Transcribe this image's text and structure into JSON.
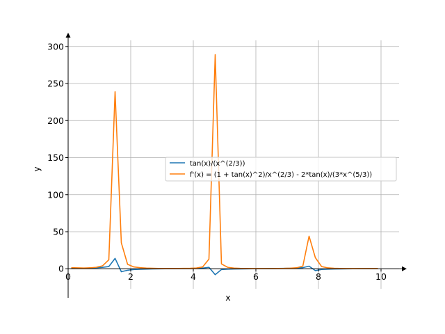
{
  "chart_data": {
    "type": "line",
    "xlabel": "x",
    "ylabel": "y",
    "xlim": [
      0,
      10.6
    ],
    "ylim": [
      -27,
      312
    ],
    "xticks": [
      0,
      2,
      4,
      6,
      8,
      10
    ],
    "yticks": [
      0,
      50,
      100,
      150,
      200,
      250,
      300
    ],
    "grid": true,
    "legend_position": "center-right",
    "series": [
      {
        "name": "tan(x)/(x^(2/3))",
        "color": "#1f77b4",
        "x": [
          0.1,
          0.3,
          0.5,
          0.7,
          0.9,
          1.1,
          1.3,
          1.5,
          1.7,
          1.9,
          2.1,
          2.3,
          2.5,
          2.7,
          2.9,
          3.1,
          3.3,
          3.5,
          3.7,
          3.9,
          4.1,
          4.3,
          4.5,
          4.7,
          4.9,
          5.1,
          5.3,
          5.5,
          5.7,
          5.9,
          6.1,
          6.3,
          6.5,
          6.7,
          6.9,
          7.1,
          7.3,
          7.5,
          7.7,
          7.9,
          8.1,
          8.3,
          8.5,
          8.7,
          8.9,
          9.1,
          9.3,
          9.5,
          9.7,
          9.9
        ],
        "y": [
          0.3,
          0.6,
          0.8,
          1.0,
          1.3,
          1.9,
          3.0,
          14.0,
          -4.0,
          -2.0,
          -1.0,
          -0.6,
          -0.4,
          -0.2,
          -0.1,
          0.0,
          0.1,
          0.2,
          0.3,
          0.4,
          0.6,
          0.9,
          2.0,
          -8.0,
          -1.0,
          -0.5,
          -0.3,
          -0.2,
          -0.1,
          0.0,
          0.1,
          0.2,
          0.3,
          0.4,
          0.5,
          0.7,
          1.0,
          1.5,
          3.5,
          -2.5,
          -0.9,
          -0.5,
          -0.3,
          -0.2,
          -0.1,
          0.0,
          0.1,
          0.2,
          0.2,
          0.3
        ]
      },
      {
        "name": "f'(x) = (1 + tan(x)^2)/x^(2/3) - 2*tan(x)/(3*x^(5/3))",
        "color": "#ff7f0e",
        "x": [
          0.1,
          0.3,
          0.5,
          0.7,
          0.9,
          1.1,
          1.3,
          1.5,
          1.7,
          1.9,
          2.1,
          2.3,
          2.5,
          2.7,
          2.9,
          3.1,
          3.3,
          3.5,
          3.7,
          3.9,
          4.1,
          4.3,
          4.5,
          4.7,
          4.9,
          5.1,
          5.3,
          5.5,
          5.7,
          5.9,
          6.1,
          6.3,
          6.5,
          6.7,
          6.9,
          7.1,
          7.3,
          7.5,
          7.7,
          7.9,
          8.1,
          8.3,
          8.5,
          8.7,
          8.9,
          9.1,
          9.3,
          9.5,
          9.7,
          9.9
        ],
        "y": [
          1.5,
          1.2,
          1.0,
          1.3,
          2.0,
          4.0,
          12.0,
          239.0,
          35.0,
          6.0,
          2.5,
          1.5,
          0.9,
          0.6,
          0.4,
          0.4,
          0.4,
          0.4,
          0.5,
          0.6,
          1.0,
          2.5,
          13.0,
          289.0,
          6.5,
          2.0,
          0.9,
          0.5,
          0.4,
          0.3,
          0.3,
          0.3,
          0.3,
          0.4,
          0.5,
          0.8,
          1.3,
          3.5,
          44.0,
          15.0,
          3.0,
          1.2,
          0.6,
          0.4,
          0.3,
          0.3,
          0.3,
          0.3,
          0.3,
          0.3
        ]
      }
    ]
  }
}
